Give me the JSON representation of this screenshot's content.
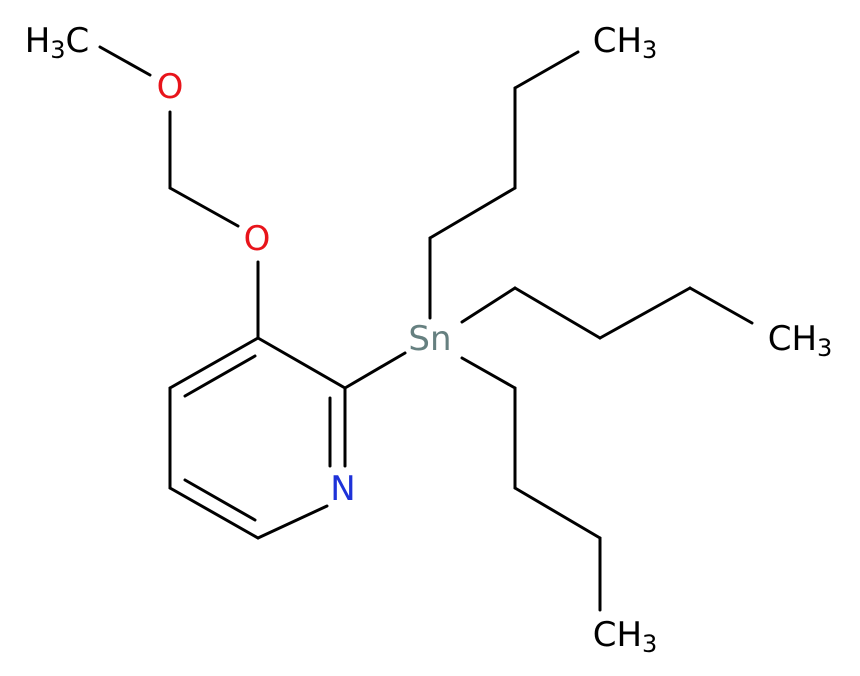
{
  "atoms": [
    {
      "label": "H3C",
      "color": "#000000"
    },
    {
      "label": "O",
      "color": "#e8141b"
    },
    {
      "label": "O",
      "color": "#e8141b"
    },
    {
      "label": "N",
      "color": "#1e32d8"
    },
    {
      "label": "Sn",
      "color": "#668080"
    },
    {
      "label": "CH3",
      "color": "#000000"
    },
    {
      "label": "CH3",
      "color": "#000000"
    },
    {
      "label": "CH3",
      "color": "#000000"
    }
  ]
}
